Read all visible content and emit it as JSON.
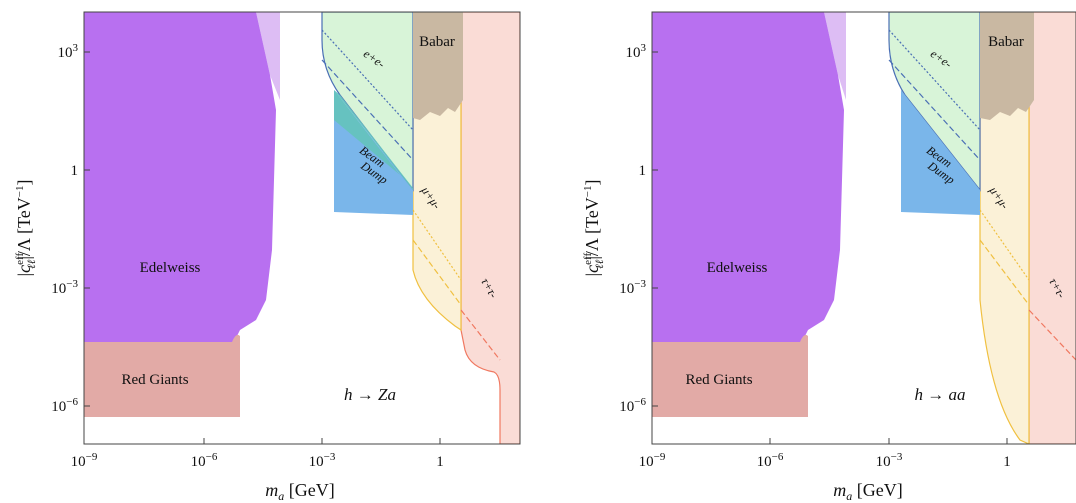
{
  "chart_data": [
    {
      "type": "area",
      "panel": "left",
      "xlabel": "m_a [GeV]",
      "ylabel": "|c^eff_ℓℓ|/Λ [TeV^-1]",
      "x_scale": "log",
      "y_scale": "log",
      "xlim": [
        1e-09,
        100
      ],
      "ylim": [
        1e-07,
        10000
      ],
      "x_ticks": [
        "10^-9",
        "10^-6",
        "10^-3",
        "1"
      ],
      "y_ticks": [
        "10^3",
        "1",
        "10^-3",
        "10^-6"
      ],
      "process": "h → Za",
      "regions": [
        {
          "name": "Edelweiss",
          "color": "#b870f0",
          "x_range": [
            1e-09,
            0.0001
          ],
          "y_range": [
            2e-05,
            10000
          ]
        },
        {
          "name": "Red Giants",
          "color": "#e2aaa6",
          "x_range": [
            1e-09,
            1.5e-05
          ],
          "y_range": [
            2e-07,
            0.0001
          ]
        },
        {
          "name": "Beam Dump",
          "color": "#7ab6ea",
          "x_range": [
            0.003,
            0.2
          ],
          "y_range": [
            0.1,
            100
          ]
        },
        {
          "name": "Babar",
          "color": "#c9b8a2",
          "x_range": [
            0.2,
            5
          ],
          "y_range": [
            10,
            10000
          ]
        },
        {
          "name": "e+e-",
          "color": "#d8f4d8",
          "x_range": [
            0.001,
            0.2
          ]
        },
        {
          "name": "μ+μ-",
          "color": "#fbf1d7",
          "x_range": [
            0.2,
            5
          ]
        },
        {
          "name": "τ+τ-",
          "color": "#fadcd6",
          "x_range": [
            5,
            50
          ]
        }
      ]
    },
    {
      "type": "area",
      "panel": "right",
      "xlabel": "m_a [GeV]",
      "ylabel": "|c^eff_ℓℓ|/Λ [TeV^-1]",
      "x_scale": "log",
      "y_scale": "log",
      "xlim": [
        1e-09,
        100
      ],
      "ylim": [
        1e-07,
        10000
      ],
      "x_ticks": [
        "10^-9",
        "10^-6",
        "10^-3",
        "1"
      ],
      "y_ticks": [
        "10^3",
        "1",
        "10^-3",
        "10^-6"
      ],
      "process": "h → aa",
      "regions": [
        {
          "name": "Edelweiss",
          "color": "#b870f0",
          "x_range": [
            1e-09,
            0.0001
          ],
          "y_range": [
            2e-05,
            10000
          ]
        },
        {
          "name": "Red Giants",
          "color": "#e2aaa6",
          "x_range": [
            1e-09,
            1.5e-05
          ],
          "y_range": [
            2e-07,
            0.0001
          ]
        },
        {
          "name": "Beam Dump",
          "color": "#7ab6ea",
          "x_range": [
            0.003,
            0.2
          ],
          "y_range": [
            0.1,
            100
          ]
        },
        {
          "name": "Babar",
          "color": "#c9b8a2",
          "x_range": [
            0.2,
            5
          ],
          "y_range": [
            10,
            10000
          ]
        },
        {
          "name": "e+e-",
          "color": "#d8f4d8",
          "x_range": [
            0.001,
            0.2
          ]
        },
        {
          "name": "μ+μ-",
          "color": "#fbf1d7",
          "x_range": [
            0.2,
            5
          ]
        },
        {
          "name": "τ+τ-",
          "color": "#fadcd6",
          "x_range": [
            5,
            50
          ]
        }
      ]
    }
  ],
  "labels": {
    "edelweiss": "Edelweiss",
    "red_giants": "Red Giants",
    "beam": "Beam",
    "dump": "Dump",
    "babar": "Babar",
    "ee": "e+e-",
    "mumu": "μ+μ-",
    "tautau": "τ+τ-",
    "proc_left": "h → Za",
    "proc_right": "h → aa",
    "xlabel": "m_a [GeV]",
    "ylabel": "|c^eff_ℓℓ|/Λ [TeV^-1]"
  },
  "colors": {
    "edelweiss": "#b870f0",
    "edelweiss_light": "#ddbdf4",
    "red_giants": "#e2aaa6",
    "beam_dump": "#7ab6ea",
    "beam_dump_overlap": "#66c2c0",
    "babar": "#c9b8a2",
    "ee_fill": "#d8f4d8",
    "ee_line": "#4a6fb5",
    "mumu_fill": "#fbf1d7",
    "mumu_line": "#f0c040",
    "tautau_fill": "#fadcd6",
    "tautau_line": "#f07860"
  }
}
